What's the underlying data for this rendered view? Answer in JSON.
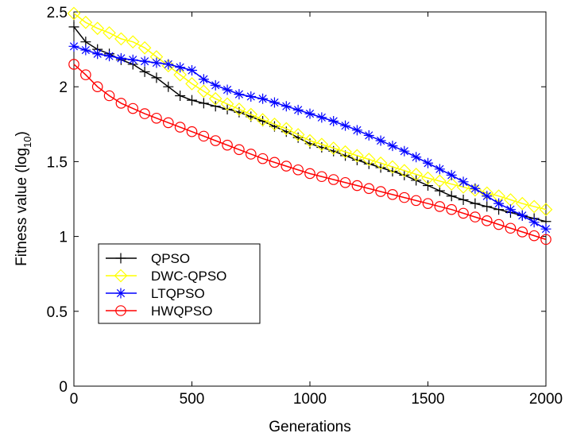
{
  "chart_data": {
    "type": "line",
    "xlabel": "Generations",
    "ylabel_main": "Fitness value (log",
    "ylabel_sub": "10",
    "ylabel_close": ")",
    "xlim": [
      0,
      2000
    ],
    "ylim": [
      0,
      2.5
    ],
    "xticks": [
      0,
      500,
      1000,
      1500,
      2000
    ],
    "xtick_labels": [
      "0",
      "500",
      "1000",
      "1500",
      "2000"
    ],
    "yticks": [
      0,
      0.5,
      1,
      1.5,
      2,
      2.5
    ],
    "ytick_labels": [
      "0",
      "0.5",
      "1",
      "1.5",
      "2",
      "2.5"
    ],
    "grid": false,
    "legend_position": "lower-left",
    "marker_step": 50,
    "series": [
      {
        "name": "QPSO",
        "color": "#000000",
        "marker": "plus",
        "x": [
          0,
          50,
          100,
          150,
          200,
          250,
          300,
          350,
          400,
          450,
          500,
          550,
          600,
          700,
          800,
          900,
          1000,
          1100,
          1200,
          1300,
          1400,
          1500,
          1600,
          1700,
          1800,
          1900,
          2000
        ],
        "y": [
          2.4,
          2.3,
          2.25,
          2.22,
          2.18,
          2.15,
          2.1,
          2.06,
          2.0,
          1.94,
          1.91,
          1.89,
          1.87,
          1.83,
          1.77,
          1.7,
          1.62,
          1.57,
          1.51,
          1.46,
          1.41,
          1.34,
          1.27,
          1.22,
          1.18,
          1.14,
          1.1
        ]
      },
      {
        "name": "DWC-QPSO",
        "color": "#ffff00",
        "marker": "diamond",
        "x": [
          0,
          50,
          100,
          150,
          200,
          250,
          300,
          350,
          400,
          450,
          500,
          550,
          600,
          700,
          800,
          900,
          1000,
          1100,
          1200,
          1300,
          1400,
          1500,
          1600,
          1700,
          1800,
          1900,
          2000
        ],
        "y": [
          2.49,
          2.43,
          2.39,
          2.36,
          2.32,
          2.3,
          2.26,
          2.2,
          2.14,
          2.08,
          2.02,
          1.97,
          1.92,
          1.85,
          1.78,
          1.72,
          1.64,
          1.59,
          1.54,
          1.49,
          1.44,
          1.39,
          1.35,
          1.31,
          1.27,
          1.22,
          1.18
        ]
      },
      {
        "name": "LTQPSO",
        "color": "#0000ff",
        "marker": "star",
        "x": [
          0,
          100,
          200,
          300,
          400,
          500,
          550,
          600,
          700,
          800,
          900,
          1000,
          1100,
          1200,
          1300,
          1400,
          1500,
          1600,
          1700,
          1800,
          1900,
          2000
        ],
        "y": [
          2.27,
          2.22,
          2.19,
          2.17,
          2.15,
          2.11,
          2.05,
          2.01,
          1.95,
          1.92,
          1.87,
          1.82,
          1.77,
          1.71,
          1.64,
          1.57,
          1.49,
          1.41,
          1.32,
          1.22,
          1.14,
          1.05
        ]
      },
      {
        "name": "HWQPSO",
        "color": "#ff0000",
        "marker": "circle",
        "x": [
          0,
          50,
          100,
          150,
          200,
          300,
          400,
          500,
          600,
          700,
          800,
          900,
          1000,
          1100,
          1200,
          1300,
          1400,
          1500,
          1600,
          1700,
          1800,
          1900,
          2000
        ],
        "y": [
          2.15,
          2.08,
          2.0,
          1.94,
          1.89,
          1.82,
          1.76,
          1.7,
          1.64,
          1.58,
          1.52,
          1.47,
          1.42,
          1.38,
          1.34,
          1.3,
          1.26,
          1.22,
          1.18,
          1.13,
          1.08,
          1.03,
          0.98
        ]
      }
    ]
  }
}
